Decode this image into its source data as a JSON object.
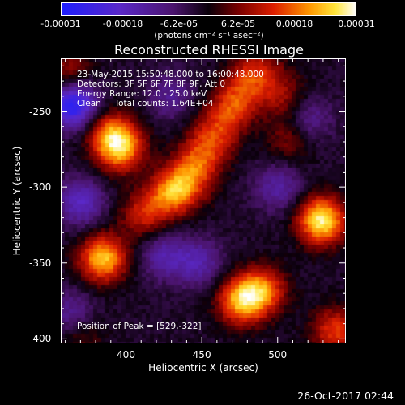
{
  "colorbar": {
    "tick_labels": [
      "-0.00031",
      "-0.00018",
      "-6.2e-05",
      "6.2e-05",
      "0.00018",
      "0.00031"
    ],
    "tick_values": [
      -0.00031,
      -0.00018,
      -6.2e-05,
      6.2e-05,
      0.00018,
      0.00031
    ],
    "units": "(photons cm⁻² s⁻¹ asec⁻²)",
    "range": [
      -0.00031,
      0.00031
    ]
  },
  "chart_data": {
    "type": "heatmap",
    "title": "Reconstructed RHESSI Image",
    "xlabel": "Heliocentric X (arcsec)",
    "ylabel": "Heliocentric Y (arcsec)",
    "xlim": [
      357,
      545
    ],
    "ylim": [
      -403,
      -215
    ],
    "x_ticks": [
      400,
      450,
      500
    ],
    "y_ticks": [
      -250,
      -300,
      -350,
      -400
    ],
    "sources": [
      {
        "x": 529,
        "y": -322,
        "value": 0.00031
      },
      {
        "x": 385,
        "y": -347,
        "value": 0.00027
      },
      {
        "x": 397,
        "y": -275,
        "value": 0.00021
      },
      {
        "x": 390,
        "y": -265,
        "value": 0.00018
      },
      {
        "x": 476,
        "y": -375,
        "value": 0.00024
      },
      {
        "x": 490,
        "y": -368,
        "value": 0.0002
      },
      {
        "x": 538,
        "y": -395,
        "value": 0.00017
      },
      {
        "x": 437,
        "y": -300,
        "value": 0.00016
      },
      {
        "x": 447,
        "y": -285,
        "value": 0.00015
      },
      {
        "x": 457,
        "y": -268,
        "value": 0.00014
      },
      {
        "x": 468,
        "y": -250,
        "value": 0.00014
      },
      {
        "x": 478,
        "y": -235,
        "value": 0.00012
      },
      {
        "x": 488,
        "y": -222,
        "value": 0.00011
      },
      {
        "x": 412,
        "y": -318,
        "value": 0.00014
      },
      {
        "x": 428,
        "y": -305,
        "value": 0.00013
      },
      {
        "x": 362,
        "y": -225,
        "value": 0.00012
      },
      {
        "x": 504,
        "y": -240,
        "value": 0.0001
      },
      {
        "x": 508,
        "y": -268,
        "value": 9e-05
      },
      {
        "x": 370,
        "y": -395,
        "value": 0.0001
      }
    ],
    "negative_regions": [
      {
        "x": 365,
        "y": -245,
        "value": -0.00028
      },
      {
        "x": 370,
        "y": -310,
        "value": -0.00015
      },
      {
        "x": 365,
        "y": -385,
        "value": -0.00013
      },
      {
        "x": 425,
        "y": -345,
        "value": -0.00012
      },
      {
        "x": 448,
        "y": -350,
        "value": -0.00012
      },
      {
        "x": 500,
        "y": -300,
        "value": -0.00011
      },
      {
        "x": 520,
        "y": -255,
        "value": -0.0001
      },
      {
        "x": 430,
        "y": -240,
        "value": -9e-05
      }
    ]
  },
  "annotations": {
    "line1": "23-May-2015 15:50:48.000 to 16:00:48.000",
    "line2": "Detectors: 3F 5F 6F 7F 8F 9F, Att 0",
    "line3": "Energy Range: 12.0 - 25.0 keV",
    "line4": "Clean     Total counts: 1.64E+04",
    "peak": "Position of Peak = [529,-322]"
  },
  "x_tick_labels": [
    "400",
    "450",
    "500"
  ],
  "y_tick_labels": [
    "-250",
    "-300",
    "-350",
    "-400"
  ],
  "footer": {
    "timestamp": "26-Oct-2017 02:44"
  }
}
